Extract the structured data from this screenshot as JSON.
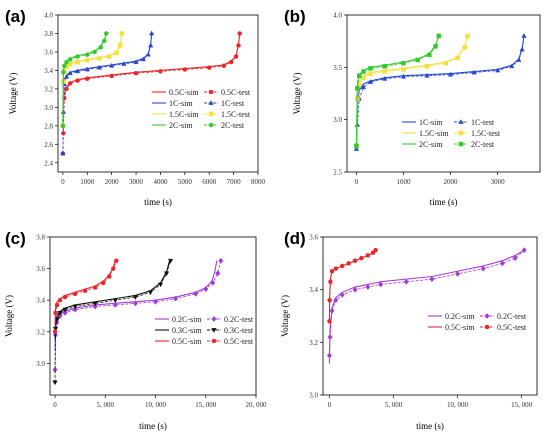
{
  "chart_data": [
    {
      "panel_label": "(a)",
      "type": "line",
      "xlabel": "time (s)",
      "ylabel": "Voltage (V)",
      "xlim": [
        -200,
        8000
      ],
      "ylim": [
        2.3,
        4.0
      ],
      "xticks": [
        0,
        1000,
        2000,
        3000,
        4000,
        5000,
        6000,
        7000,
        8000
      ],
      "xtick_labels": [
        "0",
        "1000",
        "2000",
        "3000",
        "4000",
        "5000",
        "6000",
        "7000",
        "8000"
      ],
      "yticks": [
        2.4,
        2.6,
        2.8,
        3.0,
        3.2,
        3.4,
        3.6,
        3.8,
        4.0
      ],
      "ytick_labels": [
        "2.4",
        "2.6",
        "2.8",
        "3.0",
        "3.2",
        "3.4",
        "3.6",
        "3.8",
        "4.0"
      ],
      "legend": {
        "position": "center-right",
        "columns": 2
      },
      "series": [
        {
          "name": "0.5C-sim",
          "color": "#e8262b",
          "kind": "sim",
          "x": [
            0,
            20,
            60,
            150,
            300,
            600,
            1000,
            2000,
            3000,
            4000,
            5000,
            6000,
            6600,
            6900,
            7100,
            7200,
            7250
          ],
          "y": [
            2.8,
            3.05,
            3.15,
            3.22,
            3.27,
            3.3,
            3.32,
            3.35,
            3.38,
            3.4,
            3.42,
            3.44,
            3.46,
            3.5,
            3.56,
            3.68,
            3.8
          ]
        },
        {
          "name": "0.5C-test",
          "color": "#e8262b",
          "kind": "test",
          "marker": "circle",
          "x": [
            0,
            20,
            60,
            150,
            300,
            600,
            1000,
            2000,
            3000,
            4000,
            5000,
            6000,
            6600,
            6900,
            7100,
            7200,
            7250
          ],
          "y": [
            2.5,
            2.72,
            3.1,
            3.2,
            3.26,
            3.29,
            3.31,
            3.34,
            3.37,
            3.39,
            3.41,
            3.43,
            3.45,
            3.49,
            3.55,
            3.67,
            3.8
          ]
        },
        {
          "name": "1C-sim",
          "color": "#2747d4",
          "kind": "sim",
          "x": [
            0,
            20,
            60,
            150,
            300,
            600,
            1000,
            1500,
            2000,
            2500,
            3000,
            3300,
            3500,
            3600,
            3640
          ],
          "y": [
            2.8,
            3.2,
            3.3,
            3.35,
            3.38,
            3.4,
            3.42,
            3.44,
            3.46,
            3.48,
            3.5,
            3.53,
            3.58,
            3.68,
            3.8
          ]
        },
        {
          "name": "1C-test",
          "color": "#2747d4",
          "kind": "test",
          "marker": "triangle",
          "x": [
            0,
            20,
            60,
            150,
            300,
            600,
            1000,
            1500,
            2000,
            2500,
            3000,
            3300,
            3500,
            3600,
            3640
          ],
          "y": [
            2.5,
            2.95,
            3.25,
            3.33,
            3.37,
            3.39,
            3.41,
            3.43,
            3.45,
            3.47,
            3.49,
            3.52,
            3.57,
            3.67,
            3.8
          ]
        },
        {
          "name": "1.5C-sim",
          "color": "#f5e03a",
          "kind": "sim",
          "x": [
            0,
            20,
            60,
            150,
            300,
            600,
            1000,
            1500,
            1900,
            2200,
            2350,
            2420
          ],
          "y": [
            2.8,
            3.3,
            3.4,
            3.45,
            3.48,
            3.5,
            3.52,
            3.54,
            3.56,
            3.6,
            3.68,
            3.8
          ]
        },
        {
          "name": "1.5C-test",
          "color": "#f5e03a",
          "kind": "test",
          "marker": "square",
          "x": [
            0,
            20,
            60,
            150,
            300,
            600,
            1000,
            1500,
            1900,
            2200,
            2350,
            2420
          ],
          "y": [
            2.8,
            3.28,
            3.39,
            3.44,
            3.47,
            3.49,
            3.51,
            3.53,
            3.55,
            3.59,
            3.67,
            3.8
          ]
        },
        {
          "name": "2C-sim",
          "color": "#2ecc2e",
          "kind": "sim",
          "x": [
            0,
            20,
            60,
            150,
            300,
            600,
            1000,
            1300,
            1550,
            1700,
            1780
          ],
          "y": [
            2.8,
            3.4,
            3.46,
            3.5,
            3.53,
            3.56,
            3.58,
            3.61,
            3.66,
            3.73,
            3.8
          ]
        },
        {
          "name": "2C-test",
          "color": "#2ecc2e",
          "kind": "test",
          "marker": "hexagon",
          "x": [
            0,
            20,
            60,
            150,
            300,
            600,
            1000,
            1300,
            1550,
            1700,
            1780
          ],
          "y": [
            2.8,
            3.38,
            3.45,
            3.49,
            3.52,
            3.55,
            3.57,
            3.6,
            3.65,
            3.72,
            3.8
          ]
        }
      ]
    },
    {
      "panel_label": "(b)",
      "type": "line",
      "xlabel": "time (s)",
      "ylabel": "Voltage (V)",
      "xlim": [
        -200,
        3900
      ],
      "ylim": [
        2.5,
        4.0
      ],
      "xticks": [
        0,
        1000,
        2000,
        3000
      ],
      "xtick_labels": [
        "0",
        "1000",
        "2000",
        "3000"
      ],
      "yticks": [
        2.5,
        3.0,
        3.5,
        4.0
      ],
      "ytick_labels": [
        "2.5",
        "3.0",
        "3.5",
        "4.0"
      ],
      "legend": {
        "position": "lower-right",
        "columns": 2
      },
      "series": [
        {
          "name": "1C-sim",
          "color": "#2747d4",
          "kind": "sim",
          "x": [
            0,
            20,
            60,
            150,
            300,
            600,
            1000,
            1500,
            2000,
            2500,
            3000,
            3300,
            3450,
            3520,
            3560
          ],
          "y": [
            2.75,
            3.15,
            3.28,
            3.34,
            3.37,
            3.4,
            3.42,
            3.43,
            3.44,
            3.46,
            3.48,
            3.52,
            3.58,
            3.68,
            3.8
          ]
        },
        {
          "name": "1C-test",
          "color": "#2747d4",
          "kind": "test",
          "marker": "triangle",
          "x": [
            0,
            20,
            60,
            150,
            300,
            600,
            1000,
            1500,
            2000,
            2500,
            3000,
            3300,
            3450,
            3520,
            3560
          ],
          "y": [
            2.72,
            2.95,
            3.2,
            3.31,
            3.36,
            3.39,
            3.41,
            3.42,
            3.43,
            3.45,
            3.47,
            3.51,
            3.57,
            3.67,
            3.8
          ]
        },
        {
          "name": "1.5C-sim",
          "color": "#f5e03a",
          "kind": "sim",
          "x": [
            0,
            20,
            60,
            150,
            300,
            600,
            1000,
            1500,
            1900,
            2150,
            2300,
            2360
          ],
          "y": [
            2.75,
            3.25,
            3.36,
            3.42,
            3.45,
            3.47,
            3.49,
            3.52,
            3.55,
            3.6,
            3.7,
            3.8
          ]
        },
        {
          "name": "1.5C-test",
          "color": "#f5e03a",
          "kind": "test",
          "marker": "square",
          "x": [
            0,
            20,
            60,
            150,
            300,
            600,
            1000,
            1500,
            1900,
            2150,
            2300,
            2360
          ],
          "y": [
            2.75,
            3.2,
            3.33,
            3.4,
            3.44,
            3.46,
            3.48,
            3.51,
            3.54,
            3.59,
            3.69,
            3.8
          ]
        },
        {
          "name": "2C-sim",
          "color": "#2ecc2e",
          "kind": "sim",
          "x": [
            0,
            20,
            60,
            150,
            300,
            600,
            1000,
            1300,
            1550,
            1680,
            1750
          ],
          "y": [
            2.75,
            3.35,
            3.43,
            3.47,
            3.5,
            3.52,
            3.55,
            3.58,
            3.63,
            3.71,
            3.8
          ]
        },
        {
          "name": "2C-test",
          "color": "#2ecc2e",
          "kind": "test",
          "marker": "square",
          "x": [
            0,
            20,
            60,
            150,
            300,
            600,
            1000,
            1300,
            1550,
            1680,
            1750
          ],
          "y": [
            2.75,
            3.3,
            3.42,
            3.46,
            3.49,
            3.51,
            3.54,
            3.57,
            3.62,
            3.7,
            3.8
          ]
        }
      ]
    },
    {
      "panel_label": "(c)",
      "type": "line",
      "xlabel": "time (s)",
      "ylabel": "Voltage (V)",
      "xlim": [
        -500,
        20000
      ],
      "ylim": [
        2.8,
        3.8
      ],
      "xticks": [
        0,
        5000,
        10000,
        15000,
        20000
      ],
      "xtick_labels": [
        "0",
        "5, 000",
        "10, 000",
        "15, 000",
        "20, 000"
      ],
      "yticks": [
        3.0,
        3.2,
        3.4,
        3.6,
        3.8
      ],
      "ytick_labels": [
        "3.0",
        "3.2",
        "3.4",
        "3.6",
        "3.8"
      ],
      "legend": {
        "position": "lower-center",
        "columns": 2
      },
      "series": [
        {
          "name": "0.2C-sim",
          "color": "#a53ad6",
          "kind": "sim",
          "x": [
            0,
            50,
            200,
            500,
            1000,
            2000,
            4000,
            6000,
            8000,
            10000,
            12000,
            14000,
            15000,
            15600,
            15900,
            16100
          ],
          "y": [
            3.08,
            3.22,
            3.28,
            3.31,
            3.33,
            3.35,
            3.37,
            3.38,
            3.39,
            3.4,
            3.42,
            3.45,
            3.48,
            3.52,
            3.58,
            3.65
          ]
        },
        {
          "name": "0.2C-test",
          "color": "#a53ad6",
          "kind": "test",
          "marker": "diamond",
          "x": [
            0,
            50,
            200,
            500,
            1000,
            2000,
            4000,
            6000,
            8000,
            10000,
            12000,
            14000,
            15000,
            15700,
            16200,
            16500
          ],
          "y": [
            2.96,
            3.18,
            3.26,
            3.3,
            3.32,
            3.34,
            3.36,
            3.37,
            3.38,
            3.39,
            3.41,
            3.44,
            3.47,
            3.51,
            3.57,
            3.65
          ]
        },
        {
          "name": "0.3C-sim",
          "color": "#111111",
          "kind": "sim",
          "x": [
            0,
            50,
            200,
            500,
            1000,
            2000,
            4000,
            6000,
            8000,
            9500,
            10500,
            11100,
            11400
          ],
          "y": [
            3.15,
            3.26,
            3.3,
            3.33,
            3.35,
            3.37,
            3.39,
            3.41,
            3.43,
            3.46,
            3.51,
            3.58,
            3.65
          ]
        },
        {
          "name": "0.3C-test",
          "color": "#111111",
          "kind": "test",
          "marker": "triangle-down",
          "x": [
            0,
            50,
            200,
            500,
            1000,
            2000,
            4000,
            6000,
            8000,
            9500,
            10500,
            11100,
            11500
          ],
          "y": [
            2.88,
            3.22,
            3.28,
            3.32,
            3.34,
            3.36,
            3.38,
            3.4,
            3.42,
            3.45,
            3.5,
            3.57,
            3.65
          ]
        },
        {
          "name": "0.5C-sim",
          "color": "#e8262b",
          "kind": "sim",
          "x": [
            0,
            50,
            200,
            500,
            1000,
            2000,
            3000,
            4000,
            4800,
            5400,
            5800,
            6000
          ],
          "y": [
            3.25,
            3.35,
            3.39,
            3.41,
            3.43,
            3.45,
            3.47,
            3.49,
            3.52,
            3.56,
            3.61,
            3.65
          ]
        },
        {
          "name": "0.5C-test",
          "color": "#e8262b",
          "kind": "test",
          "marker": "circle",
          "x": [
            0,
            50,
            200,
            500,
            1000,
            2000,
            3000,
            4000,
            4800,
            5400,
            5800,
            6100
          ],
          "y": [
            3.2,
            3.32,
            3.37,
            3.4,
            3.42,
            3.44,
            3.46,
            3.48,
            3.51,
            3.55,
            3.6,
            3.65
          ]
        }
      ]
    },
    {
      "panel_label": "(d)",
      "type": "line",
      "xlabel": "time (s)",
      "ylabel": "Voltage (V)",
      "xlim": [
        -500,
        16200
      ],
      "ylim": [
        3.0,
        3.6
      ],
      "xticks": [
        0,
        5000,
        10000,
        15000
      ],
      "xtick_labels": [
        "0",
        "5, 000",
        "10, 000",
        "15, 000"
      ],
      "yticks": [
        3.0,
        3.2,
        3.4,
        3.6
      ],
      "ytick_labels": [
        "3.0",
        "3.2",
        "3.4",
        "3.6"
      ],
      "legend": {
        "position": "center-right",
        "columns": 2
      },
      "series": [
        {
          "name": "0.2C-sim",
          "color": "#a53ad6",
          "kind": "sim",
          "x": [
            0,
            50,
            200,
            500,
            1000,
            2000,
            3000,
            4000,
            6000,
            8000,
            10000,
            12000,
            13500,
            14500,
            15200
          ],
          "y": [
            3.12,
            3.25,
            3.33,
            3.37,
            3.39,
            3.41,
            3.42,
            3.43,
            3.44,
            3.45,
            3.47,
            3.49,
            3.51,
            3.53,
            3.55
          ]
        },
        {
          "name": "0.2C-test",
          "color": "#a53ad6",
          "kind": "test",
          "marker": "diamond",
          "x": [
            0,
            50,
            200,
            500,
            1000,
            2000,
            3000,
            4000,
            6000,
            8000,
            10000,
            12000,
            13500,
            14500,
            15200
          ],
          "y": [
            3.15,
            3.22,
            3.32,
            3.36,
            3.38,
            3.4,
            3.41,
            3.42,
            3.43,
            3.44,
            3.46,
            3.48,
            3.5,
            3.52,
            3.55
          ]
        },
        {
          "name": "0.5C-sim",
          "color": "#e8262b",
          "kind": "sim",
          "x": [
            0,
            20,
            80,
            200,
            500,
            1000,
            1500,
            2000,
            2500,
            3000,
            3400,
            3600
          ],
          "y": [
            3.28,
            3.38,
            3.44,
            3.47,
            3.48,
            3.49,
            3.5,
            3.51,
            3.52,
            3.53,
            3.54,
            3.55
          ]
        },
        {
          "name": "0.5C-test",
          "color": "#e8262b",
          "kind": "test",
          "marker": "circle",
          "x": [
            0,
            20,
            80,
            200,
            500,
            1000,
            1500,
            2000,
            2500,
            3000,
            3400,
            3600
          ],
          "y": [
            3.28,
            3.36,
            3.43,
            3.47,
            3.48,
            3.49,
            3.5,
            3.51,
            3.52,
            3.53,
            3.54,
            3.55
          ]
        }
      ]
    }
  ]
}
